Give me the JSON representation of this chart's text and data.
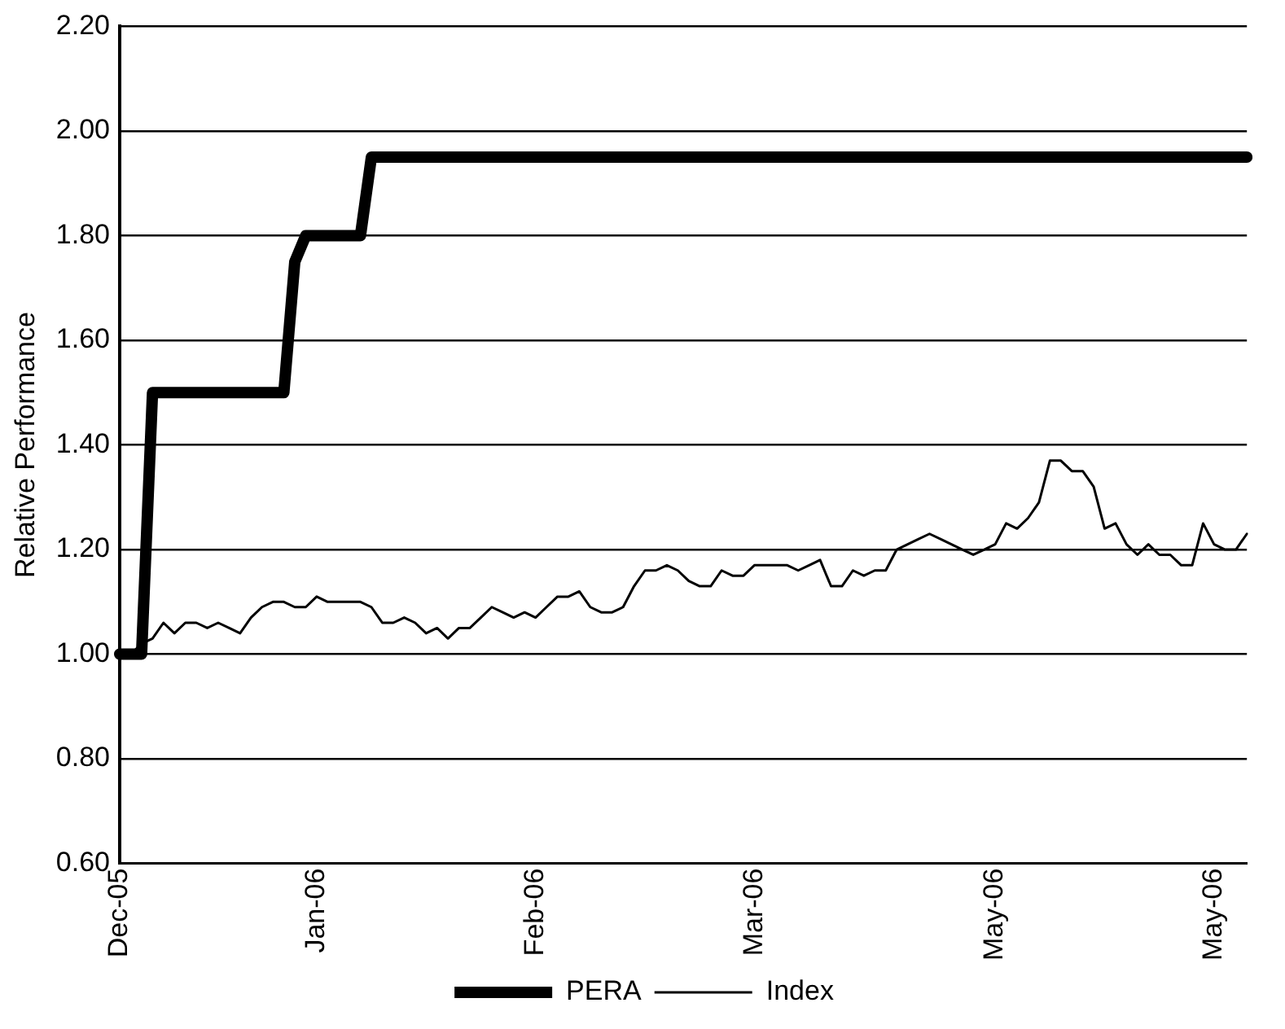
{
  "chart_data": {
    "type": "line",
    "ylabel": "Relative Performance",
    "categories": [
      "Dec-05",
      null,
      null,
      null,
      null,
      null,
      null,
      null,
      null,
      null,
      null,
      null,
      null,
      null,
      null,
      null,
      null,
      null,
      "Jan-06",
      null,
      null,
      null,
      null,
      null,
      null,
      null,
      null,
      null,
      null,
      null,
      null,
      null,
      null,
      null,
      null,
      null,
      null,
      null,
      "Feb-06",
      null,
      null,
      null,
      null,
      null,
      null,
      null,
      null,
      null,
      null,
      null,
      null,
      null,
      null,
      null,
      null,
      null,
      null,
      null,
      "Mar-06",
      null,
      null,
      null,
      null,
      null,
      null,
      null,
      null,
      null,
      null,
      null,
      null,
      null,
      null,
      null,
      null,
      null,
      null,
      null,
      null,
      null,
      "May-06",
      null,
      null,
      null,
      null,
      null,
      null,
      null,
      null,
      null,
      null,
      null,
      null,
      null,
      null,
      null,
      null,
      null,
      null,
      null,
      "May-06",
      null,
      null,
      null
    ],
    "ylim": [
      0.6,
      2.2
    ],
    "yticks": [
      {
        "value": 0.6,
        "label": "0.60"
      },
      {
        "value": 0.8,
        "label": "0.80"
      },
      {
        "value": 1,
        "label": "1.00"
      },
      {
        "value": 1.2,
        "label": "1.20"
      },
      {
        "value": 1.4,
        "label": "1.40"
      },
      {
        "value": 1.6,
        "label": "1.60"
      },
      {
        "value": 1.8,
        "label": "1.80"
      },
      {
        "value": 2,
        "label": "2.00"
      },
      {
        "value": 2.2,
        "label": "2.20"
      }
    ],
    "grid": "y",
    "legend": "bottom",
    "marker": "none",
    "line_style": "solid",
    "series": [
      {
        "name": "PERA",
        "color": "#000000",
        "values": [
          1,
          1,
          1,
          1.5,
          1.5,
          1.5,
          1.5,
          1.5,
          1.5,
          1.5,
          1.5,
          1.5,
          1.5,
          1.5,
          1.5,
          1.5,
          1.75,
          1.8,
          1.8,
          1.8,
          1.8,
          1.8,
          1.8,
          1.95,
          1.95,
          1.95,
          1.95,
          1.95,
          1.95,
          1.95,
          1.95,
          1.95,
          1.95,
          1.95,
          1.95,
          1.95,
          1.95,
          1.95,
          1.95,
          1.95,
          1.95,
          1.95,
          1.95,
          1.95,
          1.95,
          1.95,
          1.95,
          1.95,
          1.95,
          1.95,
          1.95,
          1.95,
          1.95,
          1.95,
          1.95,
          1.95,
          1.95,
          1.95,
          1.95,
          1.95,
          1.95,
          1.95,
          1.95,
          1.95,
          1.95,
          1.95,
          1.95,
          1.95,
          1.95,
          1.95,
          1.95,
          1.95,
          1.95,
          1.95,
          1.95,
          1.95,
          1.95,
          1.95,
          1.95,
          1.95,
          1.95,
          1.95,
          1.95,
          1.95,
          1.95,
          1.95,
          1.95,
          1.95,
          1.95,
          1.95,
          1.95,
          1.95,
          1.95,
          1.95,
          1.95,
          1.95,
          1.95,
          1.95,
          1.95,
          1.95,
          1.95,
          1.95,
          1.95,
          1.95
        ]
      },
      {
        "name": "Index",
        "color": "#000000",
        "values": [
          1.0,
          1.0,
          1.02,
          1.03,
          1.06,
          1.04,
          1.06,
          1.06,
          1.05,
          1.06,
          1.05,
          1.04,
          1.07,
          1.09,
          1.1,
          1.1,
          1.09,
          1.09,
          1.11,
          1.1,
          1.1,
          1.1,
          1.1,
          1.09,
          1.06,
          1.06,
          1.07,
          1.06,
          1.04,
          1.05,
          1.03,
          1.05,
          1.05,
          1.07,
          1.09,
          1.08,
          1.07,
          1.08,
          1.07,
          1.09,
          1.11,
          1.11,
          1.12,
          1.09,
          1.08,
          1.08,
          1.09,
          1.13,
          1.16,
          1.16,
          1.17,
          1.16,
          1.14,
          1.13,
          1.13,
          1.16,
          1.15,
          1.15,
          1.17,
          1.17,
          1.17,
          1.17,
          1.16,
          1.17,
          1.18,
          1.13,
          1.13,
          1.16,
          1.15,
          1.16,
          1.16,
          1.2,
          1.21,
          1.22,
          1.23,
          1.22,
          1.21,
          1.2,
          1.19,
          1.2,
          1.21,
          1.25,
          1.24,
          1.26,
          1.29,
          1.37,
          1.37,
          1.35,
          1.35,
          1.32,
          1.24,
          1.25,
          1.21,
          1.19,
          1.21,
          1.19,
          1.19,
          1.17,
          1.17,
          1.25,
          1.21,
          1.2,
          1.2,
          1.23
        ]
      }
    ]
  }
}
